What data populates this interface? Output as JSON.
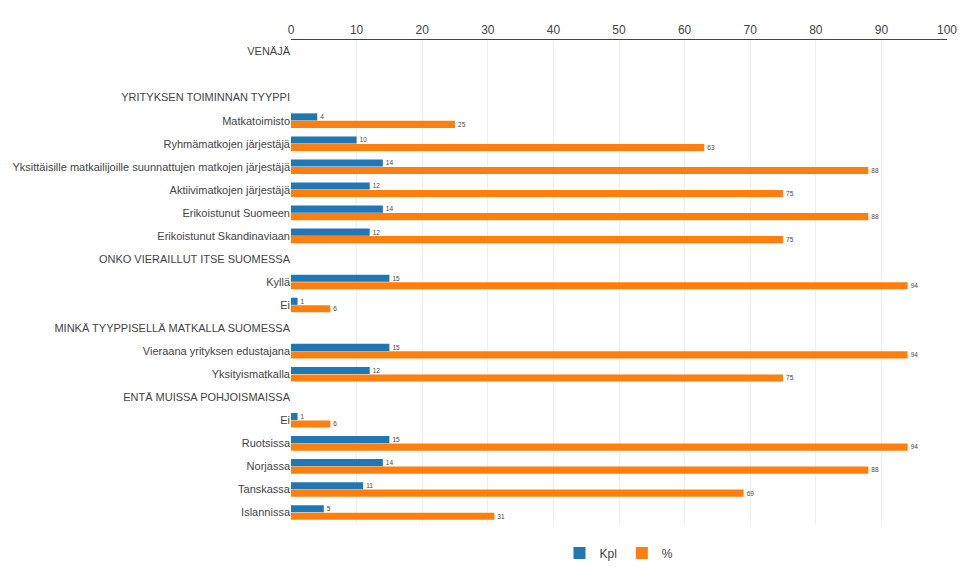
{
  "chart_data": {
    "type": "bar",
    "orientation": "horizontal",
    "categories": [
      "VENÄJÄ",
      null,
      "YRITYKSEN TOIMINNAN TYYPPI",
      "Matkatoimisto",
      "Ryhmämatkojen järjestäjä",
      "Yksittäisille matkailijoille suunnattujen matkojen järjestäjä",
      "Aktiivimatkojen järjestäjä",
      "Erikoistunut Suomeen",
      "Erikoistunut Skandinaviaan",
      "ONKO VIERAILLUT ITSE SUOMESSA",
      "Kyllä",
      "Ei",
      "MINKÄ TYYPPISELLÄ MATKALLA SUOMESSA",
      "Vieraana yrityksen edustajana",
      "Yksityismatkalla",
      "ENTÄ MUISSA POHJOISMAISSA",
      "Ei",
      "Ruotsissa",
      "Norjassa",
      "Tanskassa",
      "Islannissa"
    ],
    "series": [
      {
        "name": "Kpl",
        "values": [
          null,
          null,
          null,
          4,
          10,
          14,
          12,
          14,
          12,
          null,
          15,
          1,
          null,
          15,
          12,
          null,
          1,
          15,
          14,
          11,
          5
        ]
      },
      {
        "name": "%",
        "values": [
          null,
          null,
          null,
          25,
          63,
          88,
          75,
          88,
          75,
          null,
          94,
          6,
          null,
          94,
          75,
          null,
          6,
          94,
          88,
          69,
          31
        ]
      }
    ],
    "xlim": [
      0,
      100
    ],
    "xticks": [
      0,
      10,
      20,
      30,
      40,
      50,
      60,
      70,
      80,
      90,
      100
    ],
    "grid": true,
    "legend": "bottom",
    "data_labels": true
  }
}
